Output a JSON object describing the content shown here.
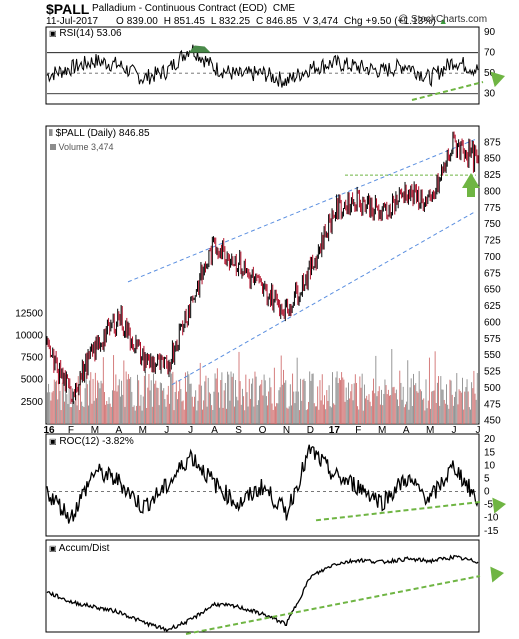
{
  "header": {
    "symbol": "$PALL",
    "name": "Palladium - Continuous Contract (EOD)",
    "exchange": "CME",
    "date": "11-Jul-2017",
    "ohlc": "O 839.00  H 851.45  L 832.25  C 846.85  V 3,474  Chg +9.50 (+1.13%)",
    "ohlc_arrow": "▲",
    "copyright": "@ StockCharts.com"
  },
  "panels": {
    "rsi_label": "RSI(14) 53.06",
    "price_label": "$PALL (Daily) 846.85",
    "volume_label": "Volume 3,474",
    "roc_label": "ROC(12) -3.82%",
    "ad_label": "Accum/Dist"
  },
  "colors": {
    "channel": "#5b8fe0",
    "trend_arrow": "#6fb543",
    "up_bar": "#000000",
    "down_bar": "#b0102a",
    "vol_up": "#8c8c8c",
    "vol_down": "#d07070",
    "rsi_fill": "#4a8a4a"
  },
  "chart_data": [
    {
      "type": "line",
      "title": "RSI(14) 53.06",
      "ylim": [
        20,
        95
      ],
      "yticks": [
        30,
        50,
        70,
        90
      ],
      "reference_lines": [
        30,
        50,
        70
      ],
      "x": [
        "Jan-16",
        "Feb-16",
        "Mar-16",
        "Apr-16",
        "May-16",
        "Jun-16",
        "Jul-16",
        "Aug-16",
        "Sep-16",
        "Oct-16",
        "Nov-16",
        "Dec-16",
        "Jan-17",
        "Feb-17",
        "Mar-17",
        "Apr-17",
        "May-17",
        "Jun-17",
        "Jul-17"
      ],
      "values": [
        48,
        55,
        62,
        58,
        45,
        52,
        75,
        55,
        48,
        50,
        42,
        55,
        60,
        56,
        52,
        58,
        45,
        62,
        53
      ],
      "trendline": "rising (bullish divergence)"
    },
    {
      "type": "line",
      "title": "$PALL (Daily) 846.85",
      "ylim": [
        445,
        900
      ],
      "yticks": [
        450,
        475,
        500,
        525,
        550,
        575,
        600,
        625,
        650,
        675,
        700,
        725,
        750,
        775,
        800,
        825,
        850,
        875
      ],
      "x": [
        "Jan-16",
        "Feb-16",
        "Mar-16",
        "Apr-16",
        "May-16",
        "Jun-16",
        "Jul-16",
        "Aug-16",
        "Sep-16",
        "Oct-16",
        "Nov-16",
        "Dec-16",
        "Jan-17",
        "Feb-17",
        "Mar-17",
        "Apr-17",
        "May-17",
        "Jun-17",
        "Jul-17"
      ],
      "values": [
        560,
        490,
        560,
        610,
        545,
        530,
        630,
        720,
        690,
        650,
        620,
        680,
        770,
        790,
        765,
        800,
        780,
        875,
        846.85
      ],
      "channel": "rising parallel channel",
      "horizontal_level": 825,
      "volume_axis": {
        "ylim": [
          0,
          14000
        ],
        "yticks": [
          2500,
          5000,
          7500,
          10000,
          12500
        ]
      },
      "xlabels": [
        "16",
        "F",
        "M",
        "A",
        "M",
        "J",
        "J",
        "A",
        "S",
        "O",
        "N",
        "D",
        "17",
        "F",
        "M",
        "A",
        "M",
        "J",
        "J"
      ]
    },
    {
      "type": "line",
      "title": "ROC(12) -3.82%",
      "ylim": [
        -17,
        22
      ],
      "yticks": [
        -15,
        -10,
        -5,
        0,
        5,
        10,
        15,
        20
      ],
      "x": [
        "Jan-16",
        "Feb-16",
        "Mar-16",
        "Apr-16",
        "May-16",
        "Jun-16",
        "Jul-16",
        "Aug-16",
        "Sep-16",
        "Oct-16",
        "Nov-16",
        "Dec-16",
        "Jan-17",
        "Feb-17",
        "Mar-17",
        "Apr-17",
        "May-17",
        "Jun-17",
        "Jul-17"
      ],
      "values": [
        0,
        -10,
        8,
        4,
        -6,
        2,
        14,
        3,
        -5,
        2,
        -8,
        16,
        6,
        2,
        -4,
        5,
        -3,
        10,
        -3.82
      ],
      "trendline": "rising lows"
    },
    {
      "type": "line",
      "title": "Accum/Dist",
      "x": [
        "Jan-16",
        "Feb-16",
        "Mar-16",
        "Apr-16",
        "May-16",
        "Jun-16",
        "Jul-16",
        "Aug-16",
        "Sep-16",
        "Oct-16",
        "Nov-16",
        "Dec-16",
        "Jan-17",
        "Feb-17",
        "Mar-17",
        "Apr-17",
        "May-17",
        "Jun-17",
        "Jul-17"
      ],
      "values": [
        40,
        30,
        25,
        20,
        10,
        2,
        12,
        28,
        25,
        18,
        8,
        55,
        68,
        72,
        70,
        73,
        71,
        75,
        70
      ],
      "trendline": "rising"
    }
  ]
}
